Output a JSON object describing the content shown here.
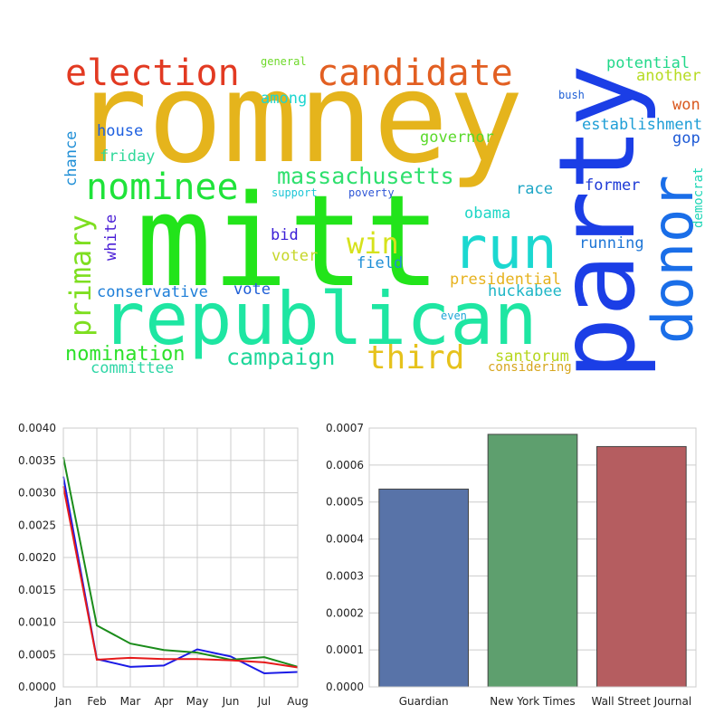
{
  "wordcloud": {
    "words": [
      {
        "text": "romney",
        "color": "#e5b41c"
      },
      {
        "text": "mitt",
        "color": "#22e41a"
      },
      {
        "text": "republican",
        "color": "#1ee6a2"
      },
      {
        "text": "party",
        "color": "#1b3ee6"
      },
      {
        "text": "run",
        "color": "#1bd8d0"
      },
      {
        "text": "donor",
        "color": "#1a6ee8"
      },
      {
        "text": "election",
        "color": "#e23a22"
      },
      {
        "text": "candidate",
        "color": "#e25f22"
      },
      {
        "text": "nominee",
        "color": "#1fe33a"
      },
      {
        "text": "massachusetts",
        "color": "#2fe06e"
      },
      {
        "text": "primary",
        "color": "#7ede20"
      },
      {
        "text": "win",
        "color": "#d6e21c"
      },
      {
        "text": "third",
        "color": "#e6c21c"
      },
      {
        "text": "campaign",
        "color": "#1ed79a"
      },
      {
        "text": "nomination",
        "color": "#2de12a"
      },
      {
        "text": "conservative",
        "color": "#1d7ed8"
      },
      {
        "text": "house",
        "color": "#1d5fe0"
      },
      {
        "text": "friday",
        "color": "#2fd99a"
      },
      {
        "text": "general",
        "color": "#6ed92a"
      },
      {
        "text": "among",
        "color": "#1dd6d0"
      },
      {
        "text": "potential",
        "color": "#22d88a"
      },
      {
        "text": "another",
        "color": "#b6db22"
      },
      {
        "text": "bush",
        "color": "#1e5fd6"
      },
      {
        "text": "won",
        "color": "#d9581e"
      },
      {
        "text": "establishment",
        "color": "#1e9ed6"
      },
      {
        "text": "gop",
        "color": "#1e5ad6"
      },
      {
        "text": "governor",
        "color": "#5ad92a"
      },
      {
        "text": "chance",
        "color": "#1e8ed6"
      },
      {
        "text": "support",
        "color": "#1ec6d6"
      },
      {
        "text": "poverty",
        "color": "#2e56d6"
      },
      {
        "text": "race",
        "color": "#1ea6c6"
      },
      {
        "text": "former",
        "color": "#1e3ad6"
      },
      {
        "text": "democrat",
        "color": "#1ed6b6"
      },
      {
        "text": "white",
        "color": "#4a1ed6"
      },
      {
        "text": "obama",
        "color": "#1ed6c6"
      },
      {
        "text": "bid",
        "color": "#3a1ed6"
      },
      {
        "text": "running",
        "color": "#1e76d6"
      },
      {
        "text": "voter",
        "color": "#c6d62a"
      },
      {
        "text": "field",
        "color": "#1e8ed6"
      },
      {
        "text": "presidential",
        "color": "#e6b21e"
      },
      {
        "text": "vote",
        "color": "#1e5ed6"
      },
      {
        "text": "huckabee",
        "color": "#1eb6c6"
      },
      {
        "text": "even",
        "color": "#1ea6d6"
      },
      {
        "text": "santorum",
        "color": "#b6d61e"
      },
      {
        "text": "committee",
        "color": "#2ed6a6"
      },
      {
        "text": "considering",
        "color": "#d6a61e"
      }
    ]
  },
  "chart_data": [
    {
      "type": "line",
      "x": [
        "Jan",
        "Feb",
        "Mar",
        "Apr",
        "May",
        "Jun",
        "Jul",
        "Aug"
      ],
      "ylim": [
        0,
        0.004
      ],
      "yticks": [
        "0.0000",
        "0.0005",
        "0.0010",
        "0.0015",
        "0.0020",
        "0.0025",
        "0.0030",
        "0.0035",
        "0.0040"
      ],
      "grid": true,
      "series": [
        {
          "color": "#1a1ae6",
          "values": [
            0.00325,
            0.00043,
            0.00031,
            0.00033,
            0.00058,
            0.00047,
            0.00021,
            0.00023
          ]
        },
        {
          "color": "#1a8c1a",
          "values": [
            0.00355,
            0.00095,
            0.00067,
            0.00057,
            0.00053,
            0.00042,
            0.00046,
            0.00031
          ]
        },
        {
          "color": "#e61a1a",
          "values": [
            0.0031,
            0.00042,
            0.00045,
            0.00043,
            0.00043,
            0.00041,
            0.00038,
            0.0003
          ]
        }
      ]
    },
    {
      "type": "bar",
      "categories": [
        "Guardian",
        "New York Times",
        "Wall Street Journal"
      ],
      "values": [
        0.000535,
        0.000683,
        0.00065
      ],
      "colors": [
        "#5873a8",
        "#5e9f6e",
        "#b55d60"
      ],
      "ylim": [
        0,
        0.0007
      ],
      "yticks": [
        "0.0000",
        "0.0001",
        "0.0002",
        "0.0003",
        "0.0004",
        "0.0005",
        "0.0006",
        "0.0007"
      ],
      "grid": true
    }
  ]
}
